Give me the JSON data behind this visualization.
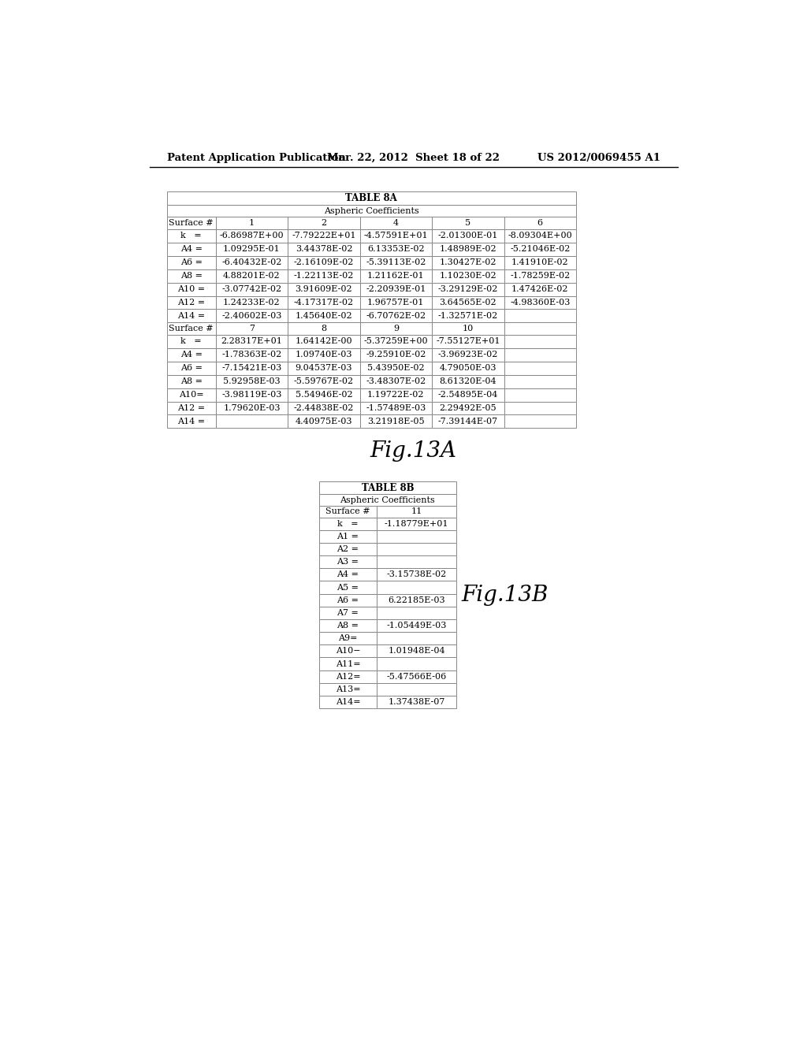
{
  "header_left": "Patent Application Publication",
  "header_center": "Mar. 22, 2012  Sheet 18 of 22",
  "header_right": "US 2012/0069455 A1",
  "table8a_title": "TABLE 8A",
  "table8a_subtitle": "Aspheric Coefficients",
  "table8a_top_headers": [
    "Surface #",
    "1",
    "2",
    "4",
    "5",
    "6"
  ],
  "table8a_top_rows": [
    [
      "k   =",
      "-6.86987E+00",
      "-7.79222E+01",
      "-4.57591E+01",
      "-2.01300E-01",
      "-8.09304E+00"
    ],
    [
      "A4 =",
      "1.09295E-01",
      "3.44378E-02",
      "6.13353E-02",
      "1.48989E-02",
      "-5.21046E-02"
    ],
    [
      "A6 =",
      "-6.40432E-02",
      "-2.16109E-02",
      "-5.39113E-02",
      "1.30427E-02",
      "1.41910E-02"
    ],
    [
      "A8 =",
      "4.88201E-02",
      "-1.22113E-02",
      "1.21162E-01",
      "1.10230E-02",
      "-1.78259E-02"
    ],
    [
      "A10 =",
      "-3.07742E-02",
      "3.91609E-02",
      "-2.20939E-01",
      "-3.29129E-02",
      "1.47426E-02"
    ],
    [
      "A12 =",
      "1.24233E-02",
      "-4.17317E-02",
      "1.96757E-01",
      "3.64565E-02",
      "-4.98360E-03"
    ],
    [
      "A14 =",
      "-2.40602E-03",
      "1.45640E-02",
      "-6.70762E-02",
      "-1.32571E-02",
      ""
    ]
  ],
  "table8a_bottom_headers": [
    "Surface #",
    "7",
    "8",
    "9",
    "10",
    ""
  ],
  "table8a_bottom_rows": [
    [
      "k   =",
      "2.28317E+01",
      "1.64142E-00",
      "-5.37259E+00",
      "-7.55127E+01",
      ""
    ],
    [
      "A4 =",
      "-1.78363E-02",
      "1.09740E-03",
      "-9.25910E-02",
      "-3.96923E-02",
      ""
    ],
    [
      "A6 =",
      "-7.15421E-03",
      "9.04537E-03",
      "5.43950E-02",
      "4.79050E-03",
      ""
    ],
    [
      "A8 =",
      "5.92958E-03",
      "-5.59767E-02",
      "-3.48307E-02",
      "8.61320E-04",
      ""
    ],
    [
      "A10=",
      "-3.98119E-03",
      "5.54946E-02",
      "1.19722E-02",
      "-2.54895E-04",
      ""
    ],
    [
      "A12 =",
      "1.79620E-03",
      "-2.44838E-02",
      "-1.57489E-03",
      "2.29492E-05",
      ""
    ],
    [
      "A14 =",
      "",
      "4.40975E-03",
      "3.21918E-05",
      "-7.39144E-07",
      ""
    ]
  ],
  "fig13a_label": "Fig.13A",
  "table8b_title": "TABLE 8B",
  "table8b_subtitle": "Aspheric Coefficients",
  "table8b_headers": [
    "Surface #",
    "11"
  ],
  "table8b_rows": [
    [
      "k   =",
      "-1.18779E+01"
    ],
    [
      "A1 =",
      ""
    ],
    [
      "A2 =",
      ""
    ],
    [
      "A3 =",
      ""
    ],
    [
      "A4 =",
      "-3.15738E-02"
    ],
    [
      "A5 =",
      ""
    ],
    [
      "A6 =",
      "6.22185E-03"
    ],
    [
      "A7 =",
      ""
    ],
    [
      "A8 =",
      "-1.05449E-03"
    ],
    [
      "A9=",
      ""
    ],
    [
      "A10−",
      "1.01948E-04"
    ],
    [
      "A11=",
      ""
    ],
    [
      "A12=",
      "-5.47566E-06"
    ],
    [
      "A13=",
      ""
    ],
    [
      "A14=",
      "1.37438E-07"
    ]
  ],
  "fig13b_label": "Fig.13B",
  "bg_color": "#ffffff",
  "text_color": "#000000",
  "table_border_color": "#888888",
  "table_font_size": 8.0,
  "header_font_size": 9.5,
  "fig_label_fontsize": 20
}
